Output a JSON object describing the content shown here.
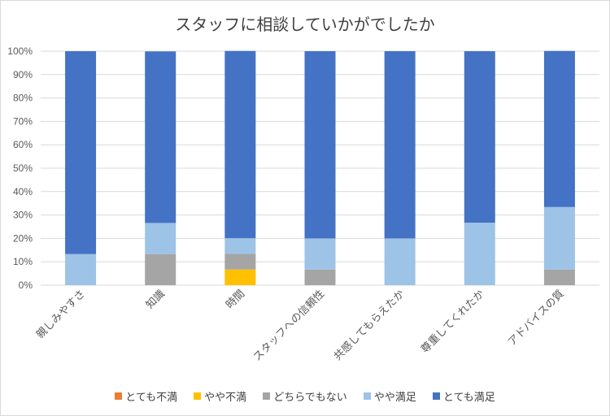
{
  "chart_data": {
    "type": "bar",
    "stacked": "percent",
    "title": "スタッフに相談していかがでしたか",
    "xlabel": "",
    "ylabel": "",
    "ylim": [
      0,
      100
    ],
    "yticks": [
      "0%",
      "10%",
      "20%",
      "30%",
      "40%",
      "50%",
      "60%",
      "70%",
      "80%",
      "90%",
      "100%"
    ],
    "grid": true,
    "legend_position": "bottom",
    "categories": [
      "親しみやすさ",
      "知識",
      "時間",
      "スタッフへの信頼性",
      "共感してもらえたか",
      "尊重してくれたか",
      "アドバイスの質"
    ],
    "series": [
      {
        "name": "とても不満",
        "color": "#ED7D31",
        "values": [
          0,
          0,
          0,
          0,
          0,
          0,
          0
        ]
      },
      {
        "name": "やや不満",
        "color": "#FFC000",
        "values": [
          0,
          0,
          6.7,
          0,
          0,
          0,
          0
        ]
      },
      {
        "name": "どちらでもない",
        "color": "#A5A5A5",
        "values": [
          0,
          13.3,
          6.7,
          6.7,
          0,
          0,
          6.7
        ]
      },
      {
        "name": "やや満足",
        "color": "#9DC3E6",
        "values": [
          13.3,
          13.3,
          6.7,
          13.3,
          20,
          26.7,
          26.7
        ]
      },
      {
        "name": "とても満足",
        "color": "#4472C4",
        "values": [
          86.7,
          73.3,
          80,
          80,
          80,
          73.3,
          66.7
        ]
      }
    ]
  }
}
